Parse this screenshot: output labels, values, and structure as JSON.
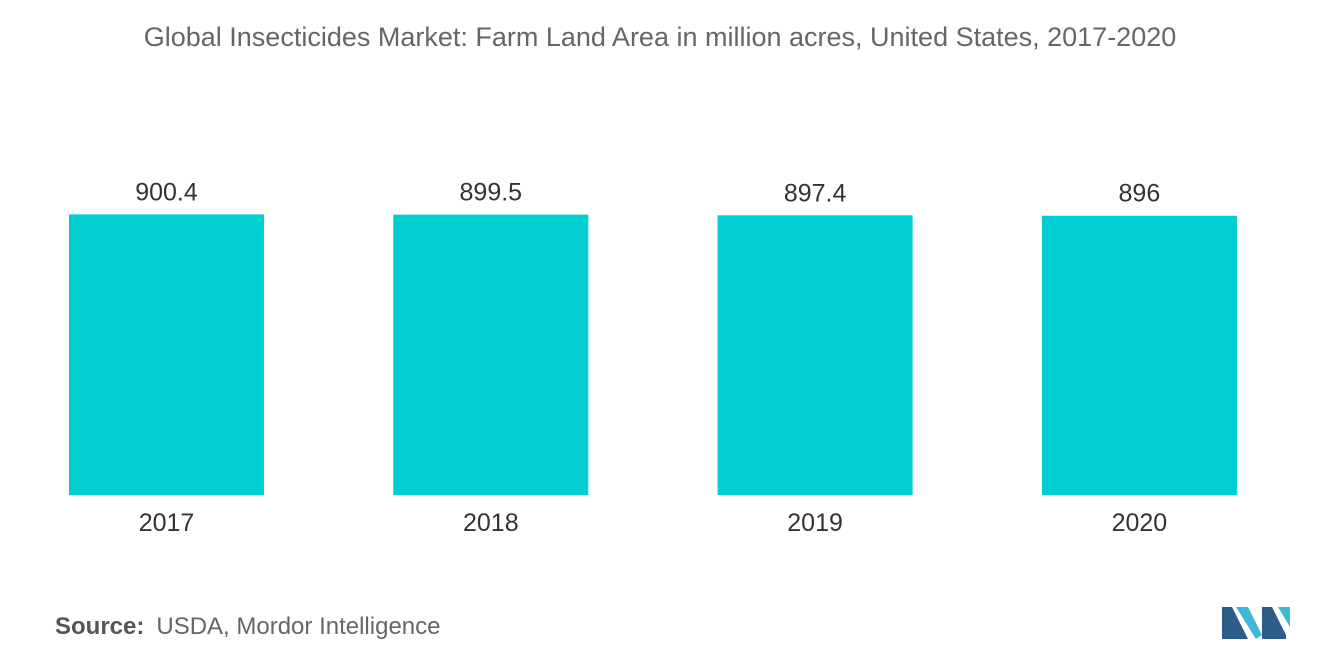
{
  "chart_data": {
    "type": "bar",
    "title": "Global Insecticides Market: Farm Land Area in million acres, United States, 2017-2020",
    "categories": [
      "2017",
      "2018",
      "2019",
      "2020"
    ],
    "values": [
      900.4,
      899.5,
      897.4,
      896
    ],
    "value_labels": [
      "900.4",
      "899.5",
      "897.4",
      "896"
    ],
    "xlabel": "",
    "ylabel": "",
    "grid": false,
    "legend": "none",
    "bar_color": "#00CED1"
  },
  "source": {
    "label": "Source:",
    "text": "USDA, Mordor Intelligence"
  },
  "colors": {
    "logo_dark": "#2C5C8A",
    "logo_light": "#3DB8D9"
  }
}
